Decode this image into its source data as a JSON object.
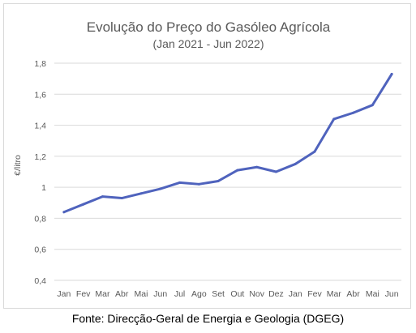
{
  "chart_data": {
    "type": "line",
    "title": "Evolução do Preço do Gasóleo Agrícola",
    "subtitle": "(Jan 2021 - Jun 2022)",
    "ylabel": "€/litro",
    "xlabel": "",
    "ylim": [
      0.4,
      1.8
    ],
    "yticks": [
      0.4,
      0.6,
      0.8,
      1.0,
      1.2,
      1.4,
      1.6,
      1.8
    ],
    "ytick_labels": [
      "0,4",
      "0,6",
      "0,8",
      "1",
      "1,2",
      "1,4",
      "1,6",
      "1,8"
    ],
    "grid": true,
    "line_color": "#4f63bd",
    "categories": [
      "Jan",
      "Fev",
      "Mar",
      "Abr",
      "Mai",
      "Jun",
      "Jul",
      "Ago",
      "Set",
      "Out",
      "Nov",
      "Dez",
      "Jan",
      "Fev",
      "Mar",
      "Abr",
      "Mai",
      "Jun"
    ],
    "series": [
      {
        "values": [
          0.84,
          0.89,
          0.94,
          0.93,
          0.96,
          0.99,
          1.03,
          1.02,
          1.04,
          1.11,
          1.13,
          1.1,
          1.15,
          1.23,
          1.44,
          1.48,
          1.53,
          1.73
        ]
      }
    ]
  },
  "source": "Fonte: Direcção-Geral de Energia e Geologia (DGEG)"
}
